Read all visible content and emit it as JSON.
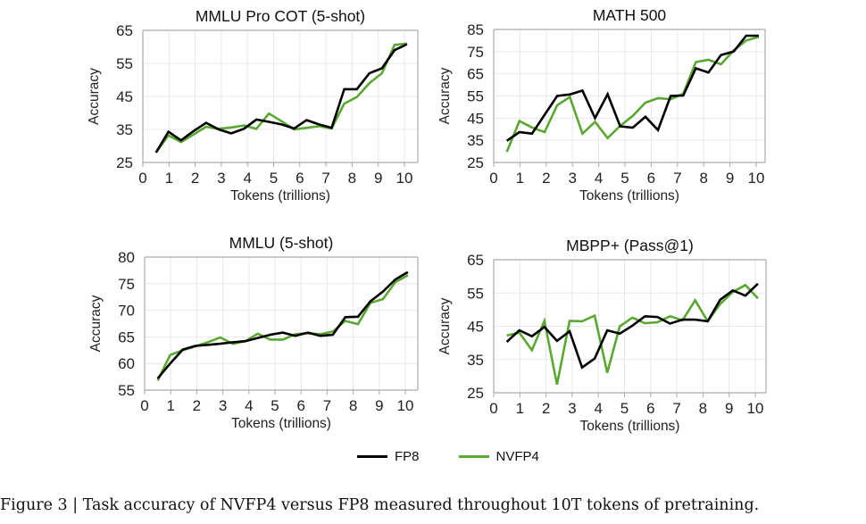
{
  "legend": {
    "fp8": "FP8",
    "nvfp4": "NVFP4"
  },
  "caption": "Figure 3 | Task accuracy of NVFP4 versus FP8 measured throughout 10T tokens of pretraining.",
  "colors": {
    "fp8": "#000000",
    "nvfp4": "#5aa832",
    "grid": "#e8e8e8",
    "axis": "#aaaaaa"
  },
  "chart_data": [
    {
      "type": "line",
      "title": "MMLU Pro COT (5-shot)",
      "xlabel": "Tokens (trillions)",
      "ylabel": "Accuracy",
      "xlim": [
        0,
        10
      ],
      "ylim": [
        25,
        65
      ],
      "xticks": [
        0,
        1,
        2,
        3,
        4,
        5,
        6,
        7,
        8,
        9,
        10
      ],
      "yticks": [
        25,
        35,
        45,
        55,
        65
      ],
      "grid": true,
      "legend": "bottom",
      "x": [
        0.5,
        0.98,
        1.46,
        1.94,
        2.42,
        2.9,
        3.38,
        3.86,
        4.34,
        4.82,
        5.3,
        5.78,
        6.26,
        6.74,
        7.22,
        7.7,
        8.18,
        8.66,
        9.14,
        9.62,
        10.1
      ],
      "series": [
        {
          "name": "FP8",
          "values": [
            28,
            34.3,
            31.7,
            34.5,
            37,
            35,
            33.8,
            35.2,
            38,
            37.3,
            36.5,
            35.3,
            37.8,
            36.5,
            35.5,
            47.2,
            47.2,
            52,
            53.5,
            59,
            60.8
          ]
        },
        {
          "name": "NVFP4",
          "values": [
            28,
            33.2,
            31.2,
            33.5,
            35.8,
            35.2,
            35.6,
            36.2,
            35.2,
            39.8,
            37.5,
            35,
            35.5,
            36,
            35.3,
            42.8,
            44.8,
            49,
            52,
            60.6,
            61
          ]
        }
      ]
    },
    {
      "type": "line",
      "title": "MATH 500",
      "xlabel": "Tokens (trillions)",
      "ylabel": "Accuracy",
      "xlim": [
        0,
        10
      ],
      "ylim": [
        25,
        85
      ],
      "xticks": [
        0,
        1,
        2,
        3,
        4,
        5,
        6,
        7,
        8,
        9,
        10
      ],
      "yticks": [
        25,
        35,
        45,
        55,
        65,
        75,
        85
      ],
      "grid": true,
      "legend": "bottom",
      "x": [
        0.5,
        0.98,
        1.46,
        1.94,
        2.42,
        2.9,
        3.38,
        3.86,
        4.34,
        4.82,
        5.3,
        5.78,
        6.26,
        6.74,
        7.22,
        7.7,
        8.18,
        8.66,
        9.14,
        9.62,
        10.1
      ],
      "series": [
        {
          "name": "FP8",
          "values": [
            34.8,
            38.7,
            38,
            46.5,
            55,
            55.7,
            57.4,
            45,
            55.8,
            41.3,
            40.7,
            45.6,
            39.6,
            55,
            55.2,
            67.5,
            65.6,
            73.5,
            75,
            82.2,
            82.2
          ]
        },
        {
          "name": "NVFP4",
          "values": [
            29.8,
            43.7,
            40.8,
            38.7,
            50.8,
            54.5,
            38,
            43.3,
            36,
            41.5,
            46,
            52,
            54,
            53.5,
            56,
            70.3,
            71.3,
            69.3,
            75.5,
            80,
            81.7
          ]
        }
      ]
    },
    {
      "type": "line",
      "title": "MMLU (5-shot)",
      "xlabel": "Tokens (trillions)",
      "ylabel": "Accuracy",
      "xlim": [
        0,
        10
      ],
      "ylim": [
        55,
        80
      ],
      "xticks": [
        0,
        1,
        2,
        3,
        4,
        5,
        6,
        7,
        8,
        9,
        10
      ],
      "yticks": [
        55,
        60,
        65,
        70,
        75,
        80
      ],
      "grid": true,
      "legend": "bottom",
      "x": [
        0.5,
        0.98,
        1.46,
        1.94,
        2.42,
        2.9,
        3.38,
        3.86,
        4.34,
        4.82,
        5.3,
        5.78,
        6.26,
        6.74,
        7.22,
        7.7,
        8.18,
        8.66,
        9.14,
        9.62,
        10.1
      ],
      "series": [
        {
          "name": "FP8",
          "values": [
            57.2,
            60,
            62.6,
            63.3,
            63.5,
            63.7,
            64,
            64.2,
            64.8,
            65.4,
            65.8,
            65.2,
            65.8,
            65.2,
            65.4,
            68.7,
            68.8,
            71.7,
            73.5,
            75.8,
            77.2
          ]
        },
        {
          "name": "NVFP4",
          "values": [
            56.8,
            61.6,
            62.5,
            63.2,
            64,
            64.9,
            63.7,
            64.2,
            65.6,
            64.5,
            64.5,
            65.5,
            65.7,
            65.5,
            66,
            68,
            67.4,
            71.4,
            72.1,
            75.3,
            76.6
          ]
        }
      ]
    },
    {
      "type": "line",
      "title": "MBPP+ (Pass@1)",
      "xlabel": "Tokens (trillions)",
      "ylabel": "Accuracy",
      "xlim": [
        0,
        10
      ],
      "ylim": [
        25,
        65
      ],
      "xticks": [
        0,
        1,
        2,
        3,
        4,
        5,
        6,
        7,
        8,
        9,
        10
      ],
      "yticks": [
        25,
        35,
        45,
        55,
        65
      ],
      "grid": true,
      "legend": "bottom",
      "x": [
        0.5,
        0.98,
        1.46,
        1.94,
        2.42,
        2.9,
        3.38,
        3.86,
        4.34,
        4.82,
        5.3,
        5.78,
        6.26,
        6.74,
        7.22,
        7.7,
        8.18,
        8.66,
        9.14,
        9.62,
        10.1
      ],
      "series": [
        {
          "name": "FP8",
          "values": [
            40.3,
            43.8,
            42,
            44.8,
            40.6,
            43.5,
            32.6,
            35.3,
            43.8,
            42.8,
            45.2,
            48,
            47.8,
            45.8,
            47,
            47,
            46.5,
            53,
            55.8,
            54.2,
            57.8
          ]
        },
        {
          "name": "NVFP4",
          "values": [
            42.2,
            43.1,
            37.8,
            46.6,
            27.5,
            46.6,
            46.5,
            48.2,
            31,
            45,
            47.6,
            45.9,
            46.2,
            48,
            46.8,
            52.8,
            46.5,
            51.7,
            55.3,
            57.4,
            53.4
          ]
        }
      ]
    }
  ]
}
